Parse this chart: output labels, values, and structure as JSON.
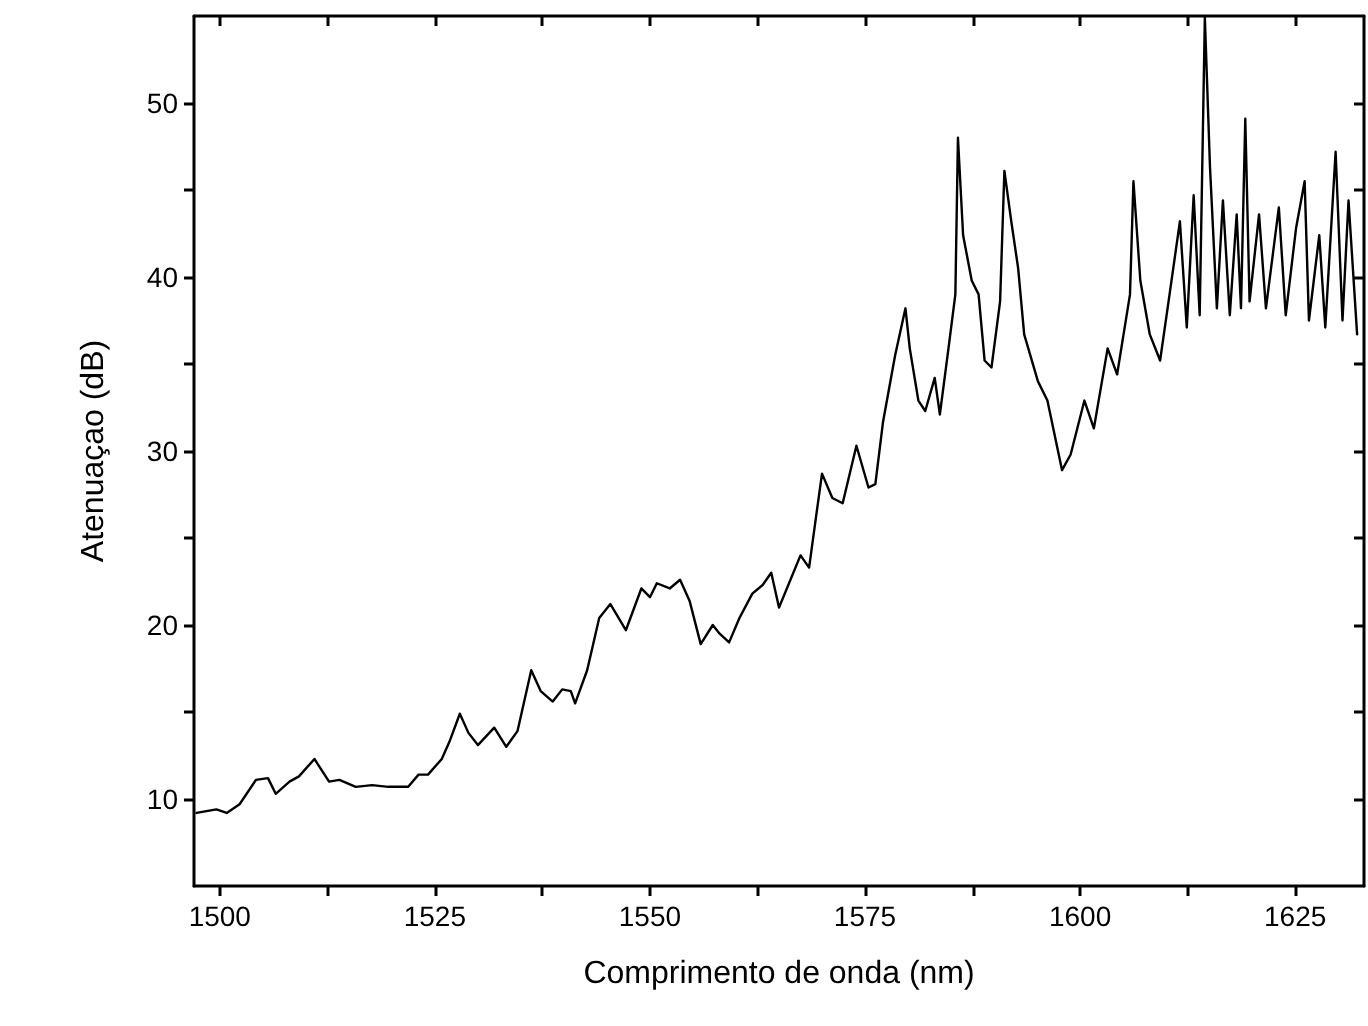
{
  "chart_data": {
    "type": "line",
    "xlabel": "Comprimento de onda (nm)",
    "ylabel": "Atenuaçao (dB)",
    "xlim": [
      1497,
      1633
    ],
    "ylim": [
      5,
      55
    ],
    "xticks": [
      1500,
      {
        "value": 1512.5,
        "label": null
      },
      1525,
      {
        "value": 1537.5,
        "label": null
      },
      1550,
      {
        "value": 1562.5,
        "label": null
      },
      1575,
      {
        "value": 1587.5,
        "label": null
      },
      1600,
      {
        "value": 1612.5,
        "label": null
      },
      1625
    ],
    "yticks": [
      10,
      {
        "value": 15,
        "label": null
      },
      20,
      {
        "value": 25,
        "label": null
      },
      30,
      {
        "value": 35,
        "label": null
      },
      40,
      {
        "value": 45,
        "label": null
      },
      50
    ],
    "grid": false,
    "marker": "none",
    "line_style": "solid",
    "series": [
      {
        "color": "#000000",
        "x": [
          1497.3,
          1499.6,
          1500.8,
          1502.3,
          1504.2,
          1505.6,
          1506.5,
          1508.1,
          1509.2,
          1511.0,
          1512.7,
          1513.9,
          1515.8,
          1517.7,
          1519.6,
          1521.9,
          1523.1,
          1524.2,
          1525.8,
          1526.7,
          1527.9,
          1528.9,
          1530.0,
          1531.9,
          1533.3,
          1534.6,
          1536.2,
          1537.3,
          1538.7,
          1539.8,
          1540.8,
          1541.3,
          1542.7,
          1544.1,
          1545.4,
          1547.2,
          1549.0,
          1550.0,
          1550.8,
          1552.3,
          1553.5,
          1554.6,
          1555.9,
          1557.3,
          1558.1,
          1559.2,
          1560.4,
          1561.9,
          1563.1,
          1564.1,
          1565.0,
          1566.5,
          1567.5,
          1568.5,
          1569.3,
          1570.0,
          1571.2,
          1572.4,
          1574.0,
          1575.4,
          1576.2,
          1577.1,
          1578.5,
          1579.7,
          1580.2,
          1581.2,
          1582.0,
          1583.1,
          1583.7,
          1584.7,
          1585.5,
          1585.8,
          1586.4,
          1587.4,
          1588.2,
          1588.9,
          1589.7,
          1590.7,
          1591.2,
          1592.0,
          1592.8,
          1593.5,
          1595.1,
          1596.2,
          1597.9,
          1598.9,
          1600.5,
          1601.6,
          1603.2,
          1604.3,
          1605.8,
          1606.2,
          1607.0,
          1608.1,
          1609.3,
          1610.4,
          1611.6,
          1612.4,
          1613.2,
          1613.9,
          1614.5,
          1615.1,
          1615.9,
          1616.6,
          1617.4,
          1618.2,
          1618.7,
          1619.2,
          1619.7,
          1620.8,
          1621.6,
          1623.1,
          1623.9,
          1625.1,
          1626.1,
          1626.6,
          1627.8,
          1628.5,
          1629.7,
          1630.5,
          1631.2,
          1632.2
        ],
        "values": [
          9.2,
          9.4,
          9.2,
          9.7,
          11.1,
          11.2,
          10.3,
          11.0,
          11.3,
          12.3,
          11.0,
          11.1,
          10.7,
          10.8,
          10.7,
          10.7,
          11.4,
          11.4,
          12.3,
          13.3,
          14.9,
          13.8,
          13.1,
          14.1,
          13.0,
          13.9,
          17.4,
          16.2,
          15.6,
          16.3,
          16.2,
          15.5,
          17.4,
          20.4,
          21.2,
          19.7,
          22.1,
          21.6,
          22.4,
          22.1,
          22.6,
          21.4,
          18.9,
          20.0,
          19.5,
          19.0,
          20.4,
          21.8,
          22.3,
          23.0,
          21.0,
          22.8,
          24.0,
          23.3,
          26.2,
          28.7,
          27.3,
          27.0,
          30.3,
          27.9,
          28.1,
          31.7,
          35.5,
          38.2,
          35.9,
          32.9,
          32.3,
          34.2,
          32.1,
          35.9,
          39.0,
          48.0,
          42.4,
          39.8,
          39.0,
          35.2,
          34.8,
          38.6,
          46.1,
          43.2,
          40.5,
          36.7,
          34.0,
          32.9,
          28.9,
          29.8,
          32.9,
          31.3,
          35.9,
          34.4,
          39.0,
          45.5,
          39.8,
          36.7,
          35.2,
          39.0,
          43.2,
          37.1,
          44.7,
          37.8,
          54.9,
          46.3,
          38.2,
          44.4,
          37.8,
          43.6,
          38.2,
          49.1,
          38.6,
          43.6,
          38.2,
          44.0,
          37.8,
          42.8,
          45.5,
          37.5,
          42.4,
          37.1,
          47.2,
          37.5,
          44.4,
          36.7
        ]
      }
    ]
  }
}
